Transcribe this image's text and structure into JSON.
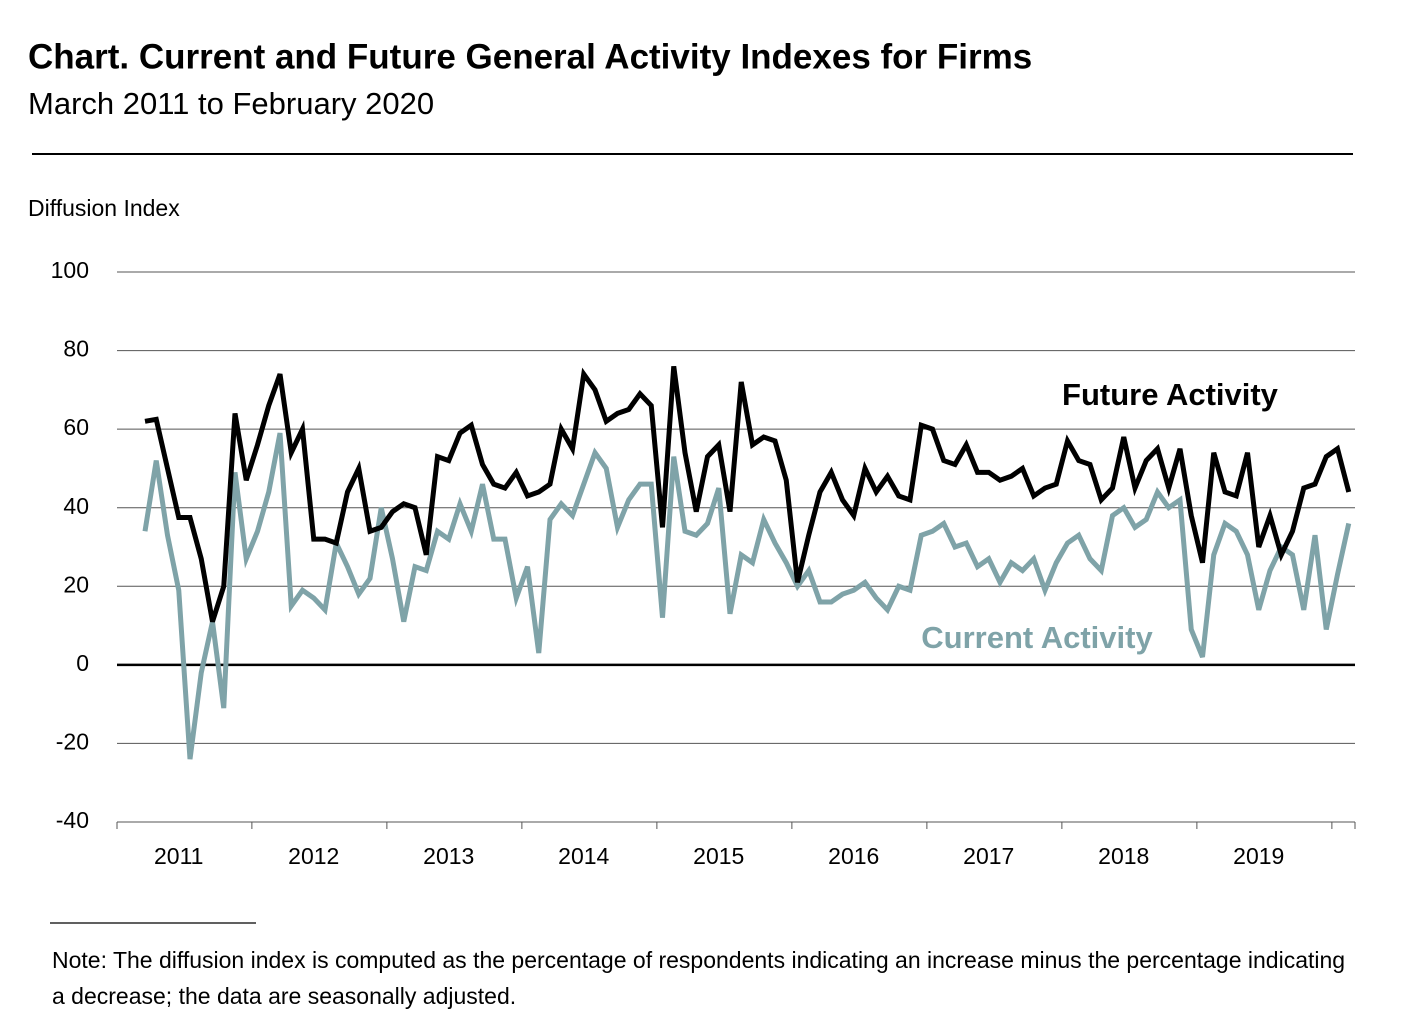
{
  "chart_data": {
    "type": "line",
    "title": "Chart. Current and Future General Activity Indexes for Firms",
    "subtitle": "March 2011 to February 2020",
    "y_label": "Diffusion Index",
    "note": "Note:  The diffusion index is computed as the percentage of respondents indicating an increase minus the percentage indicating a decrease; the data are seasonally adjusted.",
    "categories": [
      null,
      null,
      null,
      "2011",
      null,
      null,
      null,
      null,
      null,
      null,
      null,
      null,
      null,
      null,
      null,
      "2012",
      null,
      null,
      null,
      null,
      null,
      null,
      null,
      null,
      null,
      null,
      null,
      "2013",
      null,
      null,
      null,
      null,
      null,
      null,
      null,
      null,
      null,
      null,
      null,
      "2014",
      null,
      null,
      null,
      null,
      null,
      null,
      null,
      null,
      null,
      null,
      null,
      "2015",
      null,
      null,
      null,
      null,
      null,
      null,
      null,
      null,
      null,
      null,
      null,
      "2016",
      null,
      null,
      null,
      null,
      null,
      null,
      null,
      null,
      null,
      null,
      null,
      "2017",
      null,
      null,
      null,
      null,
      null,
      null,
      null,
      null,
      null,
      null,
      null,
      "2018",
      null,
      null,
      null,
      null,
      null,
      null,
      null,
      null,
      null,
      null,
      null,
      "2019",
      null,
      null,
      null,
      null,
      null,
      null,
      null,
      null
    ],
    "series": [
      {
        "name": "Future Activity",
        "color": "#000000",
        "values": [
          62,
          62.5,
          50,
          37.5,
          37.5,
          27,
          11,
          20,
          64,
          47,
          56,
          66,
          74,
          54,
          60,
          32,
          32,
          31,
          44,
          50,
          34,
          35,
          39,
          41,
          40,
          28,
          53,
          52,
          59,
          61,
          51,
          46,
          45,
          49,
          43,
          44,
          46,
          60,
          55,
          74,
          70,
          62,
          64,
          65,
          69,
          66,
          35,
          76,
          54,
          39,
          53,
          56,
          39,
          72,
          56,
          58,
          57,
          47,
          21,
          33,
          44,
          49,
          42,
          38,
          50,
          44,
          48,
          43,
          42,
          61,
          60,
          52,
          51,
          56,
          49,
          49,
          47,
          48,
          50,
          43,
          45,
          46,
          57,
          52,
          51,
          42,
          45,
          58,
          45,
          52,
          55,
          45,
          55,
          38,
          26,
          54,
          44,
          43,
          54,
          30,
          38,
          28,
          34,
          45,
          46,
          53,
          55,
          44
        ]
      },
      {
        "name": "Current Activity",
        "color": "#7fa3a8",
        "values": [
          34,
          52,
          33,
          19,
          -24,
          -2,
          11,
          -11,
          49,
          27,
          34,
          44,
          59,
          15,
          19,
          17,
          14,
          31,
          25,
          18,
          22,
          40,
          27,
          11,
          25,
          24,
          34,
          32,
          41,
          34,
          46,
          32,
          32,
          17,
          25,
          3,
          37,
          41,
          38,
          46,
          54,
          50,
          35,
          42,
          46,
          46,
          12,
          53,
          34,
          33,
          36,
          45,
          13,
          28,
          26,
          37,
          31,
          26,
          20,
          24,
          16,
          16,
          18,
          19,
          21,
          17,
          14,
          20,
          19,
          33,
          34,
          36,
          30,
          31,
          25,
          27,
          21,
          26,
          24,
          27,
          19,
          26,
          31,
          33,
          27,
          24,
          38,
          40,
          35,
          37,
          44,
          40,
          42,
          9,
          2,
          28,
          36,
          34,
          28,
          14,
          24,
          30,
          28,
          14,
          33,
          9,
          23,
          36
        ]
      }
    ],
    "ylim": [
      -40,
      100
    ],
    "yticks": [
      -40,
      -20,
      0,
      20,
      40,
      60,
      80,
      100
    ],
    "grid": true
  }
}
